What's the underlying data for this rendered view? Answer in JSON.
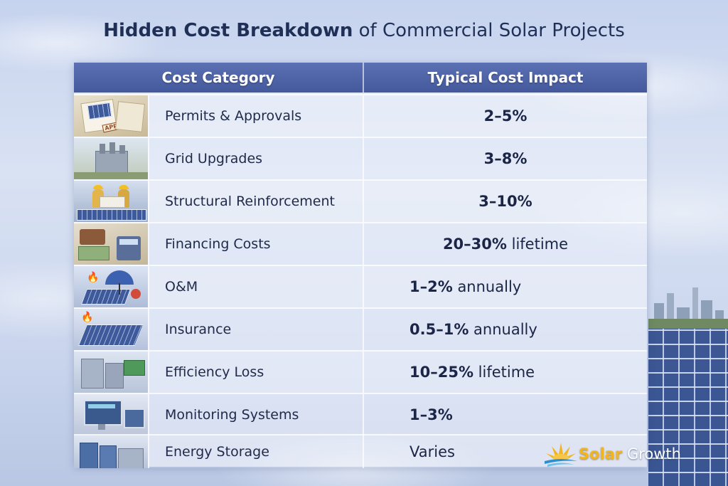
{
  "title": {
    "bold": "Hidden Cost Breakdown",
    "rest": "of Commercial Solar Projects"
  },
  "table": {
    "headers": [
      "Cost Category",
      "Typical Cost Impact"
    ],
    "rows": [
      {
        "category": "Permits & Approvals",
        "impact_num": "2–5%",
        "impact_rest": "",
        "icon": "approved-documents-icon",
        "stamp": "APPROVED"
      },
      {
        "category": "Grid Upgrades",
        "impact_num": "3–8%",
        "impact_rest": "",
        "icon": "substation-icon"
      },
      {
        "category": "Structural Reinforcement",
        "impact_num": "3–10%",
        "impact_rest": "",
        "icon": "engineers-icon"
      },
      {
        "category": "Financing Costs",
        "impact_num": "20–30%",
        "impact_rest": " lifetime",
        "icon": "money-calculator-icon"
      },
      {
        "category": "O&M",
        "impact_num": "1–2%",
        "impact_rest": " annually",
        "icon": "umbrella-panel-icon"
      },
      {
        "category": "Insurance",
        "impact_num": "0.5–1%",
        "impact_rest": " annually",
        "icon": "panel-fire-icon"
      },
      {
        "category": "Efficiency Loss",
        "impact_num": "10–25%",
        "impact_rest": "  lifetime",
        "icon": "equipment-icon"
      },
      {
        "category": "Monitoring Systems",
        "impact_num": "1–3%",
        "impact_rest": "",
        "icon": "monitor-icon"
      },
      {
        "category": "Energy Storage",
        "impact_num": "",
        "impact_rest": "Varies",
        "icon": "battery-storage-icon"
      }
    ]
  },
  "logo": {
    "solar": "Solar",
    "growth": " Growth"
  },
  "colors": {
    "header": "#44599c",
    "title": "#1f2f56",
    "logo_sun": "#f2b51f"
  }
}
